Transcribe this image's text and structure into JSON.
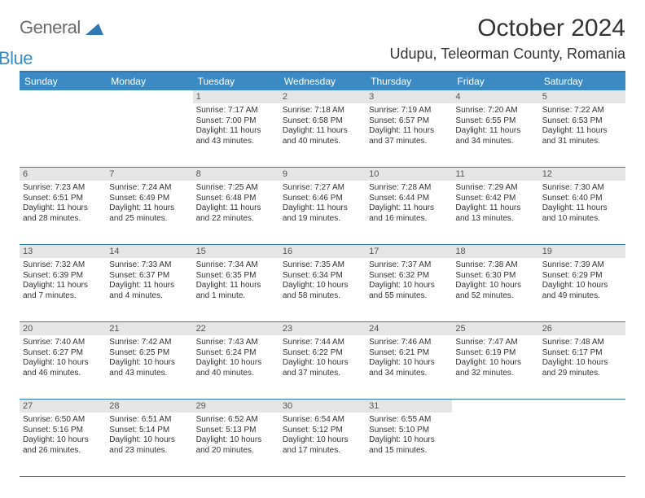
{
  "logo": {
    "part1": "General",
    "part2": "Blue"
  },
  "title": "October 2024",
  "location": "Udupu, Teleorman County, Romania",
  "colors": {
    "header_blue": "#3b8ac4",
    "border_blue": "#2f77b5",
    "daynum_bg": "#e5e5e5",
    "text": "#333333",
    "logo_gray": "#6b6b6b"
  },
  "day_headers": [
    "Sunday",
    "Monday",
    "Tuesday",
    "Wednesday",
    "Thursday",
    "Friday",
    "Saturday"
  ],
  "weeks": [
    [
      {
        "n": "",
        "sr": "",
        "ss": "",
        "dl": ""
      },
      {
        "n": "",
        "sr": "",
        "ss": "",
        "dl": ""
      },
      {
        "n": "1",
        "sr": "Sunrise: 7:17 AM",
        "ss": "Sunset: 7:00 PM",
        "dl": "Daylight: 11 hours and 43 minutes."
      },
      {
        "n": "2",
        "sr": "Sunrise: 7:18 AM",
        "ss": "Sunset: 6:58 PM",
        "dl": "Daylight: 11 hours and 40 minutes."
      },
      {
        "n": "3",
        "sr": "Sunrise: 7:19 AM",
        "ss": "Sunset: 6:57 PM",
        "dl": "Daylight: 11 hours and 37 minutes."
      },
      {
        "n": "4",
        "sr": "Sunrise: 7:20 AM",
        "ss": "Sunset: 6:55 PM",
        "dl": "Daylight: 11 hours and 34 minutes."
      },
      {
        "n": "5",
        "sr": "Sunrise: 7:22 AM",
        "ss": "Sunset: 6:53 PM",
        "dl": "Daylight: 11 hours and 31 minutes."
      }
    ],
    [
      {
        "n": "6",
        "sr": "Sunrise: 7:23 AM",
        "ss": "Sunset: 6:51 PM",
        "dl": "Daylight: 11 hours and 28 minutes."
      },
      {
        "n": "7",
        "sr": "Sunrise: 7:24 AM",
        "ss": "Sunset: 6:49 PM",
        "dl": "Daylight: 11 hours and 25 minutes."
      },
      {
        "n": "8",
        "sr": "Sunrise: 7:25 AM",
        "ss": "Sunset: 6:48 PM",
        "dl": "Daylight: 11 hours and 22 minutes."
      },
      {
        "n": "9",
        "sr": "Sunrise: 7:27 AM",
        "ss": "Sunset: 6:46 PM",
        "dl": "Daylight: 11 hours and 19 minutes."
      },
      {
        "n": "10",
        "sr": "Sunrise: 7:28 AM",
        "ss": "Sunset: 6:44 PM",
        "dl": "Daylight: 11 hours and 16 minutes."
      },
      {
        "n": "11",
        "sr": "Sunrise: 7:29 AM",
        "ss": "Sunset: 6:42 PM",
        "dl": "Daylight: 11 hours and 13 minutes."
      },
      {
        "n": "12",
        "sr": "Sunrise: 7:30 AM",
        "ss": "Sunset: 6:40 PM",
        "dl": "Daylight: 11 hours and 10 minutes."
      }
    ],
    [
      {
        "n": "13",
        "sr": "Sunrise: 7:32 AM",
        "ss": "Sunset: 6:39 PM",
        "dl": "Daylight: 11 hours and 7 minutes."
      },
      {
        "n": "14",
        "sr": "Sunrise: 7:33 AM",
        "ss": "Sunset: 6:37 PM",
        "dl": "Daylight: 11 hours and 4 minutes."
      },
      {
        "n": "15",
        "sr": "Sunrise: 7:34 AM",
        "ss": "Sunset: 6:35 PM",
        "dl": "Daylight: 11 hours and 1 minute."
      },
      {
        "n": "16",
        "sr": "Sunrise: 7:35 AM",
        "ss": "Sunset: 6:34 PM",
        "dl": "Daylight: 10 hours and 58 minutes."
      },
      {
        "n": "17",
        "sr": "Sunrise: 7:37 AM",
        "ss": "Sunset: 6:32 PM",
        "dl": "Daylight: 10 hours and 55 minutes."
      },
      {
        "n": "18",
        "sr": "Sunrise: 7:38 AM",
        "ss": "Sunset: 6:30 PM",
        "dl": "Daylight: 10 hours and 52 minutes."
      },
      {
        "n": "19",
        "sr": "Sunrise: 7:39 AM",
        "ss": "Sunset: 6:29 PM",
        "dl": "Daylight: 10 hours and 49 minutes."
      }
    ],
    [
      {
        "n": "20",
        "sr": "Sunrise: 7:40 AM",
        "ss": "Sunset: 6:27 PM",
        "dl": "Daylight: 10 hours and 46 minutes."
      },
      {
        "n": "21",
        "sr": "Sunrise: 7:42 AM",
        "ss": "Sunset: 6:25 PM",
        "dl": "Daylight: 10 hours and 43 minutes."
      },
      {
        "n": "22",
        "sr": "Sunrise: 7:43 AM",
        "ss": "Sunset: 6:24 PM",
        "dl": "Daylight: 10 hours and 40 minutes."
      },
      {
        "n": "23",
        "sr": "Sunrise: 7:44 AM",
        "ss": "Sunset: 6:22 PM",
        "dl": "Daylight: 10 hours and 37 minutes."
      },
      {
        "n": "24",
        "sr": "Sunrise: 7:46 AM",
        "ss": "Sunset: 6:21 PM",
        "dl": "Daylight: 10 hours and 34 minutes."
      },
      {
        "n": "25",
        "sr": "Sunrise: 7:47 AM",
        "ss": "Sunset: 6:19 PM",
        "dl": "Daylight: 10 hours and 32 minutes."
      },
      {
        "n": "26",
        "sr": "Sunrise: 7:48 AM",
        "ss": "Sunset: 6:17 PM",
        "dl": "Daylight: 10 hours and 29 minutes."
      }
    ],
    [
      {
        "n": "27",
        "sr": "Sunrise: 6:50 AM",
        "ss": "Sunset: 5:16 PM",
        "dl": "Daylight: 10 hours and 26 minutes."
      },
      {
        "n": "28",
        "sr": "Sunrise: 6:51 AM",
        "ss": "Sunset: 5:14 PM",
        "dl": "Daylight: 10 hours and 23 minutes."
      },
      {
        "n": "29",
        "sr": "Sunrise: 6:52 AM",
        "ss": "Sunset: 5:13 PM",
        "dl": "Daylight: 10 hours and 20 minutes."
      },
      {
        "n": "30",
        "sr": "Sunrise: 6:54 AM",
        "ss": "Sunset: 5:12 PM",
        "dl": "Daylight: 10 hours and 17 minutes."
      },
      {
        "n": "31",
        "sr": "Sunrise: 6:55 AM",
        "ss": "Sunset: 5:10 PM",
        "dl": "Daylight: 10 hours and 15 minutes."
      },
      {
        "n": "",
        "sr": "",
        "ss": "",
        "dl": ""
      },
      {
        "n": "",
        "sr": "",
        "ss": "",
        "dl": ""
      }
    ]
  ]
}
